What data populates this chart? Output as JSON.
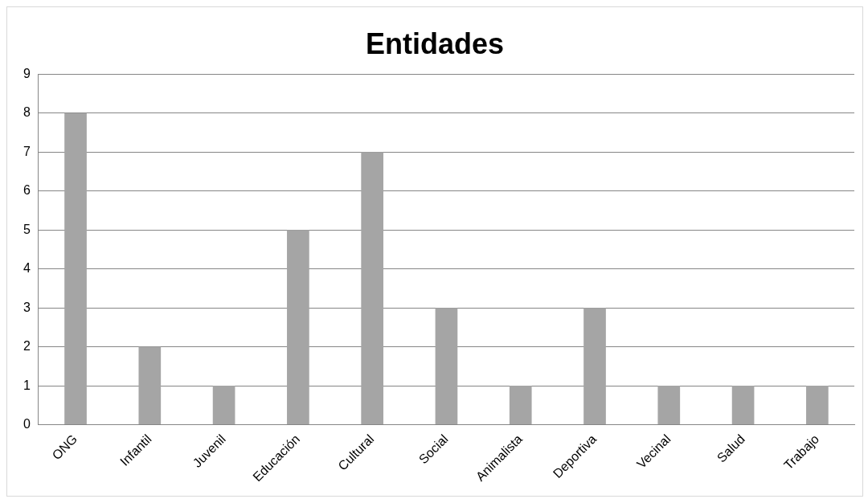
{
  "chart_data": {
    "type": "bar",
    "title": "Entidades",
    "categories": [
      "ONG",
      "Infantil",
      "Juvenil",
      "Educación",
      "Cultural",
      "Social",
      "Animalista",
      "Deportiva",
      "Vecinal",
      "Salud",
      "Trabajo"
    ],
    "values": [
      8,
      2,
      1,
      5,
      7,
      3,
      1,
      3,
      1,
      1,
      1
    ],
    "color": "#a5a5a5",
    "ylim": [
      0,
      9
    ],
    "yticks": [
      0,
      1,
      2,
      3,
      4,
      5,
      6,
      7,
      8,
      9
    ],
    "grid": "y",
    "legend": false
  }
}
